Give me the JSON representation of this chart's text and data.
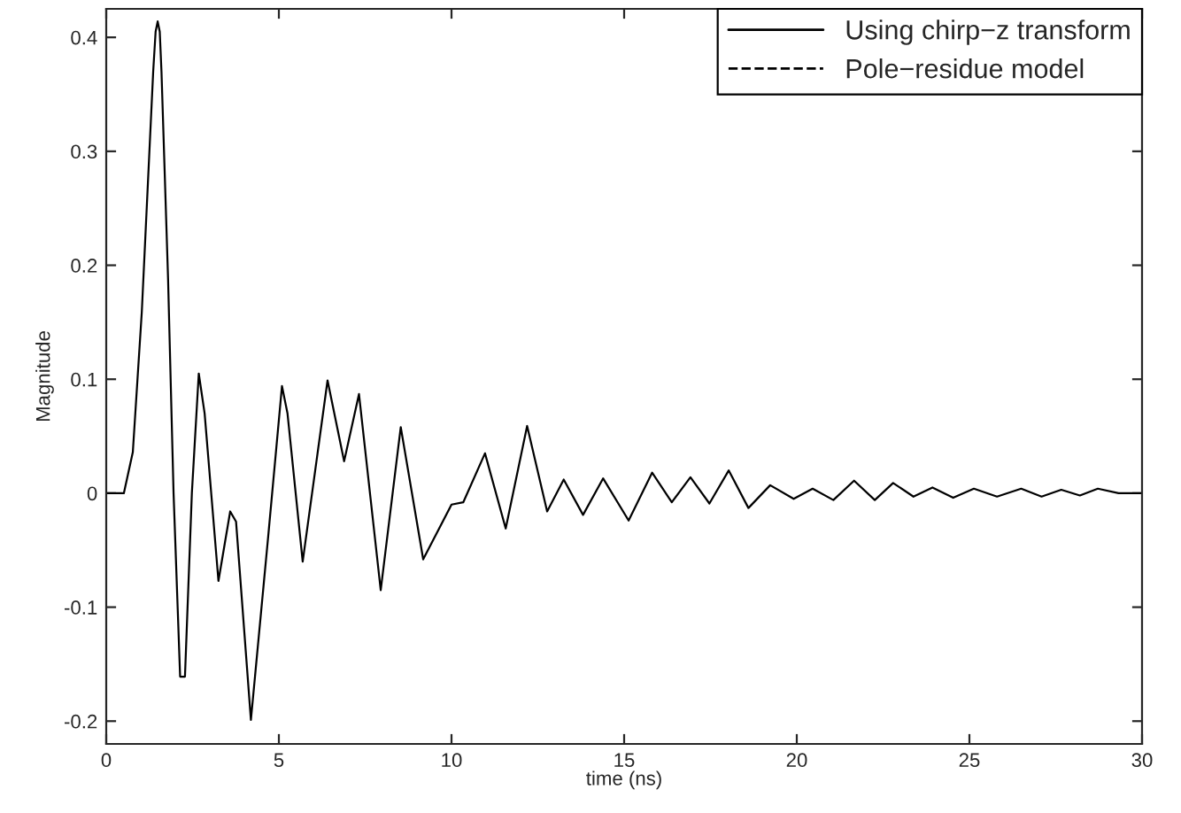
{
  "chart_data": {
    "type": "line",
    "xlabel": "time (ns)",
    "ylabel": "Magnitude",
    "xlim": [
      0,
      30
    ],
    "xticks": [
      0,
      5,
      10,
      15,
      20,
      25,
      30
    ],
    "ylim": [
      -0.22,
      0.425
    ],
    "yticks": [
      -0.2,
      -0.1,
      0,
      0.1,
      0.2,
      0.3,
      0.4
    ],
    "grid": false,
    "legend": "top right",
    "marker": "none",
    "series": [
      {
        "name": "Using chirp−z transform",
        "color": "#000000",
        "line_style": "solid",
        "x": [
          0,
          0.51,
          0.77,
          1.03,
          1.36,
          1.43,
          1.49,
          1.55,
          1.6,
          1.79,
          1.95,
          2.14,
          2.28,
          2.48,
          2.68,
          2.85,
          3.25,
          3.59,
          3.76,
          4.19,
          4.7,
          5.09,
          5.25,
          5.69,
          6.41,
          6.89,
          7.32,
          7.95,
          8.53,
          9.18,
          10.0,
          10.34,
          10.97,
          11.57,
          12.19,
          12.77,
          13.25,
          13.81,
          14.39,
          15.13,
          15.81,
          16.38,
          16.92,
          17.47,
          18.03,
          18.6,
          19.23,
          19.91,
          20.46,
          21.06,
          21.66,
          22.26,
          22.79,
          23.38,
          23.93,
          24.53,
          25.13,
          25.8,
          26.5,
          27.09,
          27.66,
          28.2,
          28.72,
          29.32,
          30
        ],
        "values": [
          0,
          0,
          0.036,
          0.159,
          0.37,
          0.405,
          0.414,
          0.405,
          0.37,
          0.189,
          0,
          -0.161,
          -0.161,
          0,
          0.105,
          0.07,
          -0.077,
          -0.016,
          -0.025,
          -0.199,
          -0.035,
          0.094,
          0.07,
          -0.06,
          0.099,
          0.028,
          0.087,
          -0.085,
          0.058,
          -0.058,
          -0.01,
          -0.008,
          0.035,
          -0.031,
          0.059,
          -0.016,
          0.012,
          -0.019,
          0.013,
          -0.024,
          0.018,
          -0.008,
          0.014,
          -0.009,
          0.02,
          -0.013,
          0.007,
          -0.005,
          0.004,
          -0.006,
          0.011,
          -0.006,
          0.009,
          -0.003,
          0.005,
          -0.004,
          0.004,
          -0.003,
          0.004,
          -0.003,
          0.003,
          -0.002,
          0.004,
          0,
          0
        ]
      },
      {
        "name": "Pole−residue model",
        "color": "#000000",
        "line_style": "dashed",
        "type": "line"
      }
    ]
  }
}
